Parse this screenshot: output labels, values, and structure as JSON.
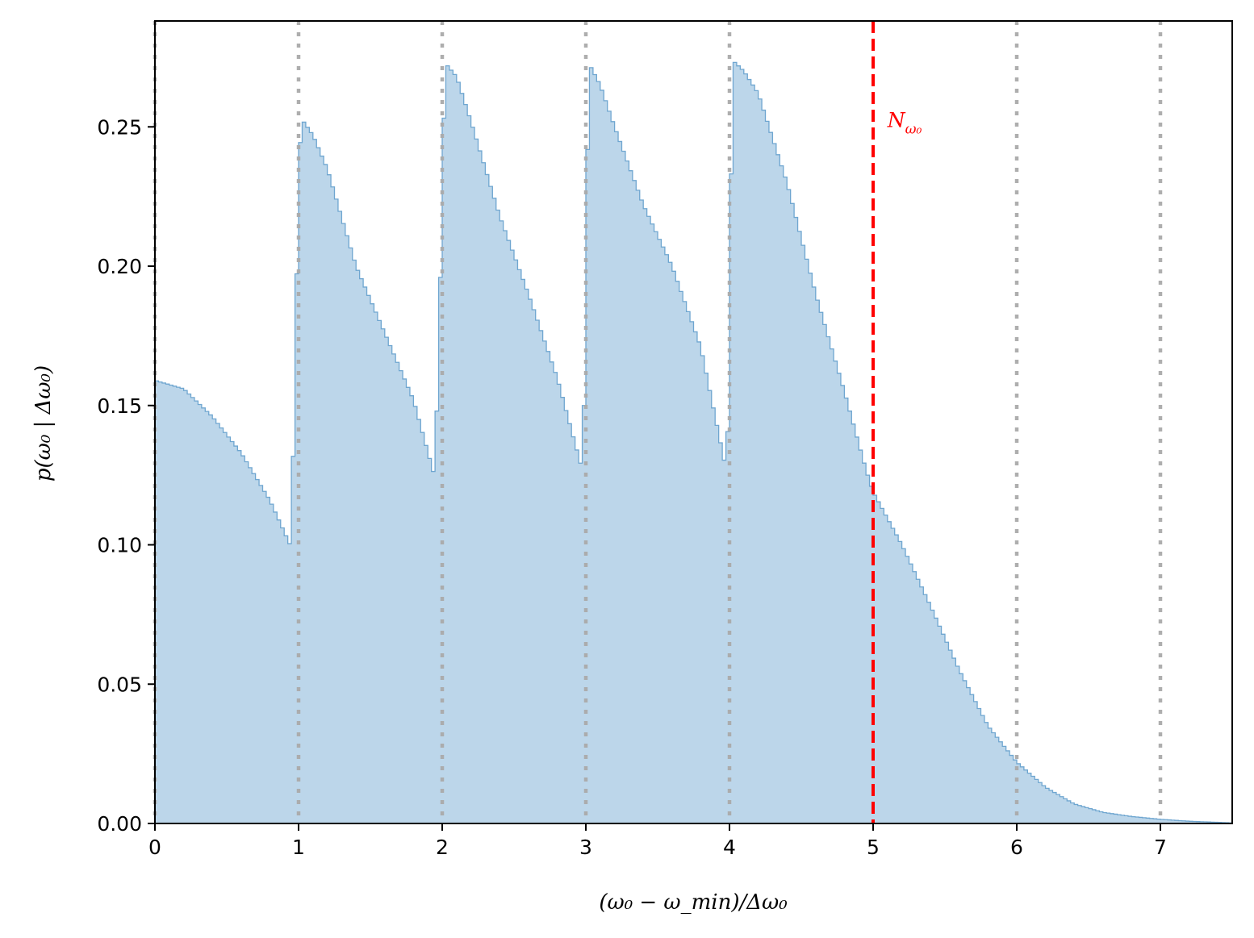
{
  "chart_data": {
    "type": "area",
    "xlabel": "(ω₀ − ω_min)/Δω₀",
    "ylabel": "p(ω₀ | Δω₀)",
    "xlim": [
      0,
      7.5
    ],
    "ylim": [
      0,
      0.288
    ],
    "x_ticks": [
      "0",
      "1",
      "2",
      "3",
      "4",
      "5",
      "6",
      "7"
    ],
    "y_ticks": [
      "0.00",
      "0.05",
      "0.10",
      "0.15",
      "0.20",
      "0.25"
    ],
    "grid": false,
    "fill_color": "#bcd6ea",
    "edge_color": "#6fa6d0",
    "vertical_lines": [
      {
        "x": 0,
        "style": "dotted",
        "color": "#aaaaaa"
      },
      {
        "x": 1,
        "style": "dotted",
        "color": "#aaaaaa"
      },
      {
        "x": 2,
        "style": "dotted",
        "color": "#aaaaaa"
      },
      {
        "x": 3,
        "style": "dotted",
        "color": "#aaaaaa"
      },
      {
        "x": 4,
        "style": "dotted",
        "color": "#aaaaaa"
      },
      {
        "x": 6,
        "style": "dotted",
        "color": "#aaaaaa"
      },
      {
        "x": 7,
        "style": "dotted",
        "color": "#aaaaaa"
      },
      {
        "x": 5,
        "style": "dashed",
        "color": "#ff0000"
      }
    ],
    "annotation": {
      "text": "N",
      "subscript": "ω₀",
      "x": 5.1,
      "y": 0.25,
      "color": "#ff0000"
    },
    "histogram_envelope": {
      "x": [
        0,
        0.2,
        0.4,
        0.6,
        0.8,
        0.95,
        1.0,
        1.02,
        1.1,
        1.2,
        1.4,
        1.6,
        1.8,
        1.95,
        2.0,
        2.02,
        2.1,
        2.2,
        2.4,
        2.6,
        2.8,
        2.98,
        3.0,
        3.02,
        3.1,
        3.2,
        3.4,
        3.6,
        3.8,
        3.98,
        4.0,
        4.02,
        4.1,
        4.2,
        4.4,
        4.6,
        4.8,
        4.95,
        5.0,
        5.2,
        5.4,
        5.6,
        5.8,
        6.0,
        6.2,
        6.4,
        6.6,
        6.8,
        7.0,
        7.2,
        7.5
      ],
      "y": [
        0.159,
        0.156,
        0.146,
        0.133,
        0.116,
        0.099,
        0.23,
        0.253,
        0.247,
        0.235,
        0.2,
        0.176,
        0.152,
        0.124,
        0.22,
        0.273,
        0.268,
        0.252,
        0.218,
        0.19,
        0.16,
        0.126,
        0.19,
        0.273,
        0.265,
        0.25,
        0.222,
        0.2,
        0.171,
        0.126,
        0.165,
        0.274,
        0.27,
        0.262,
        0.23,
        0.19,
        0.155,
        0.127,
        0.119,
        0.1,
        0.078,
        0.055,
        0.035,
        0.022,
        0.013,
        0.007,
        0.004,
        0.0025,
        0.0015,
        0.0008,
        0.0002
      ]
    }
  }
}
